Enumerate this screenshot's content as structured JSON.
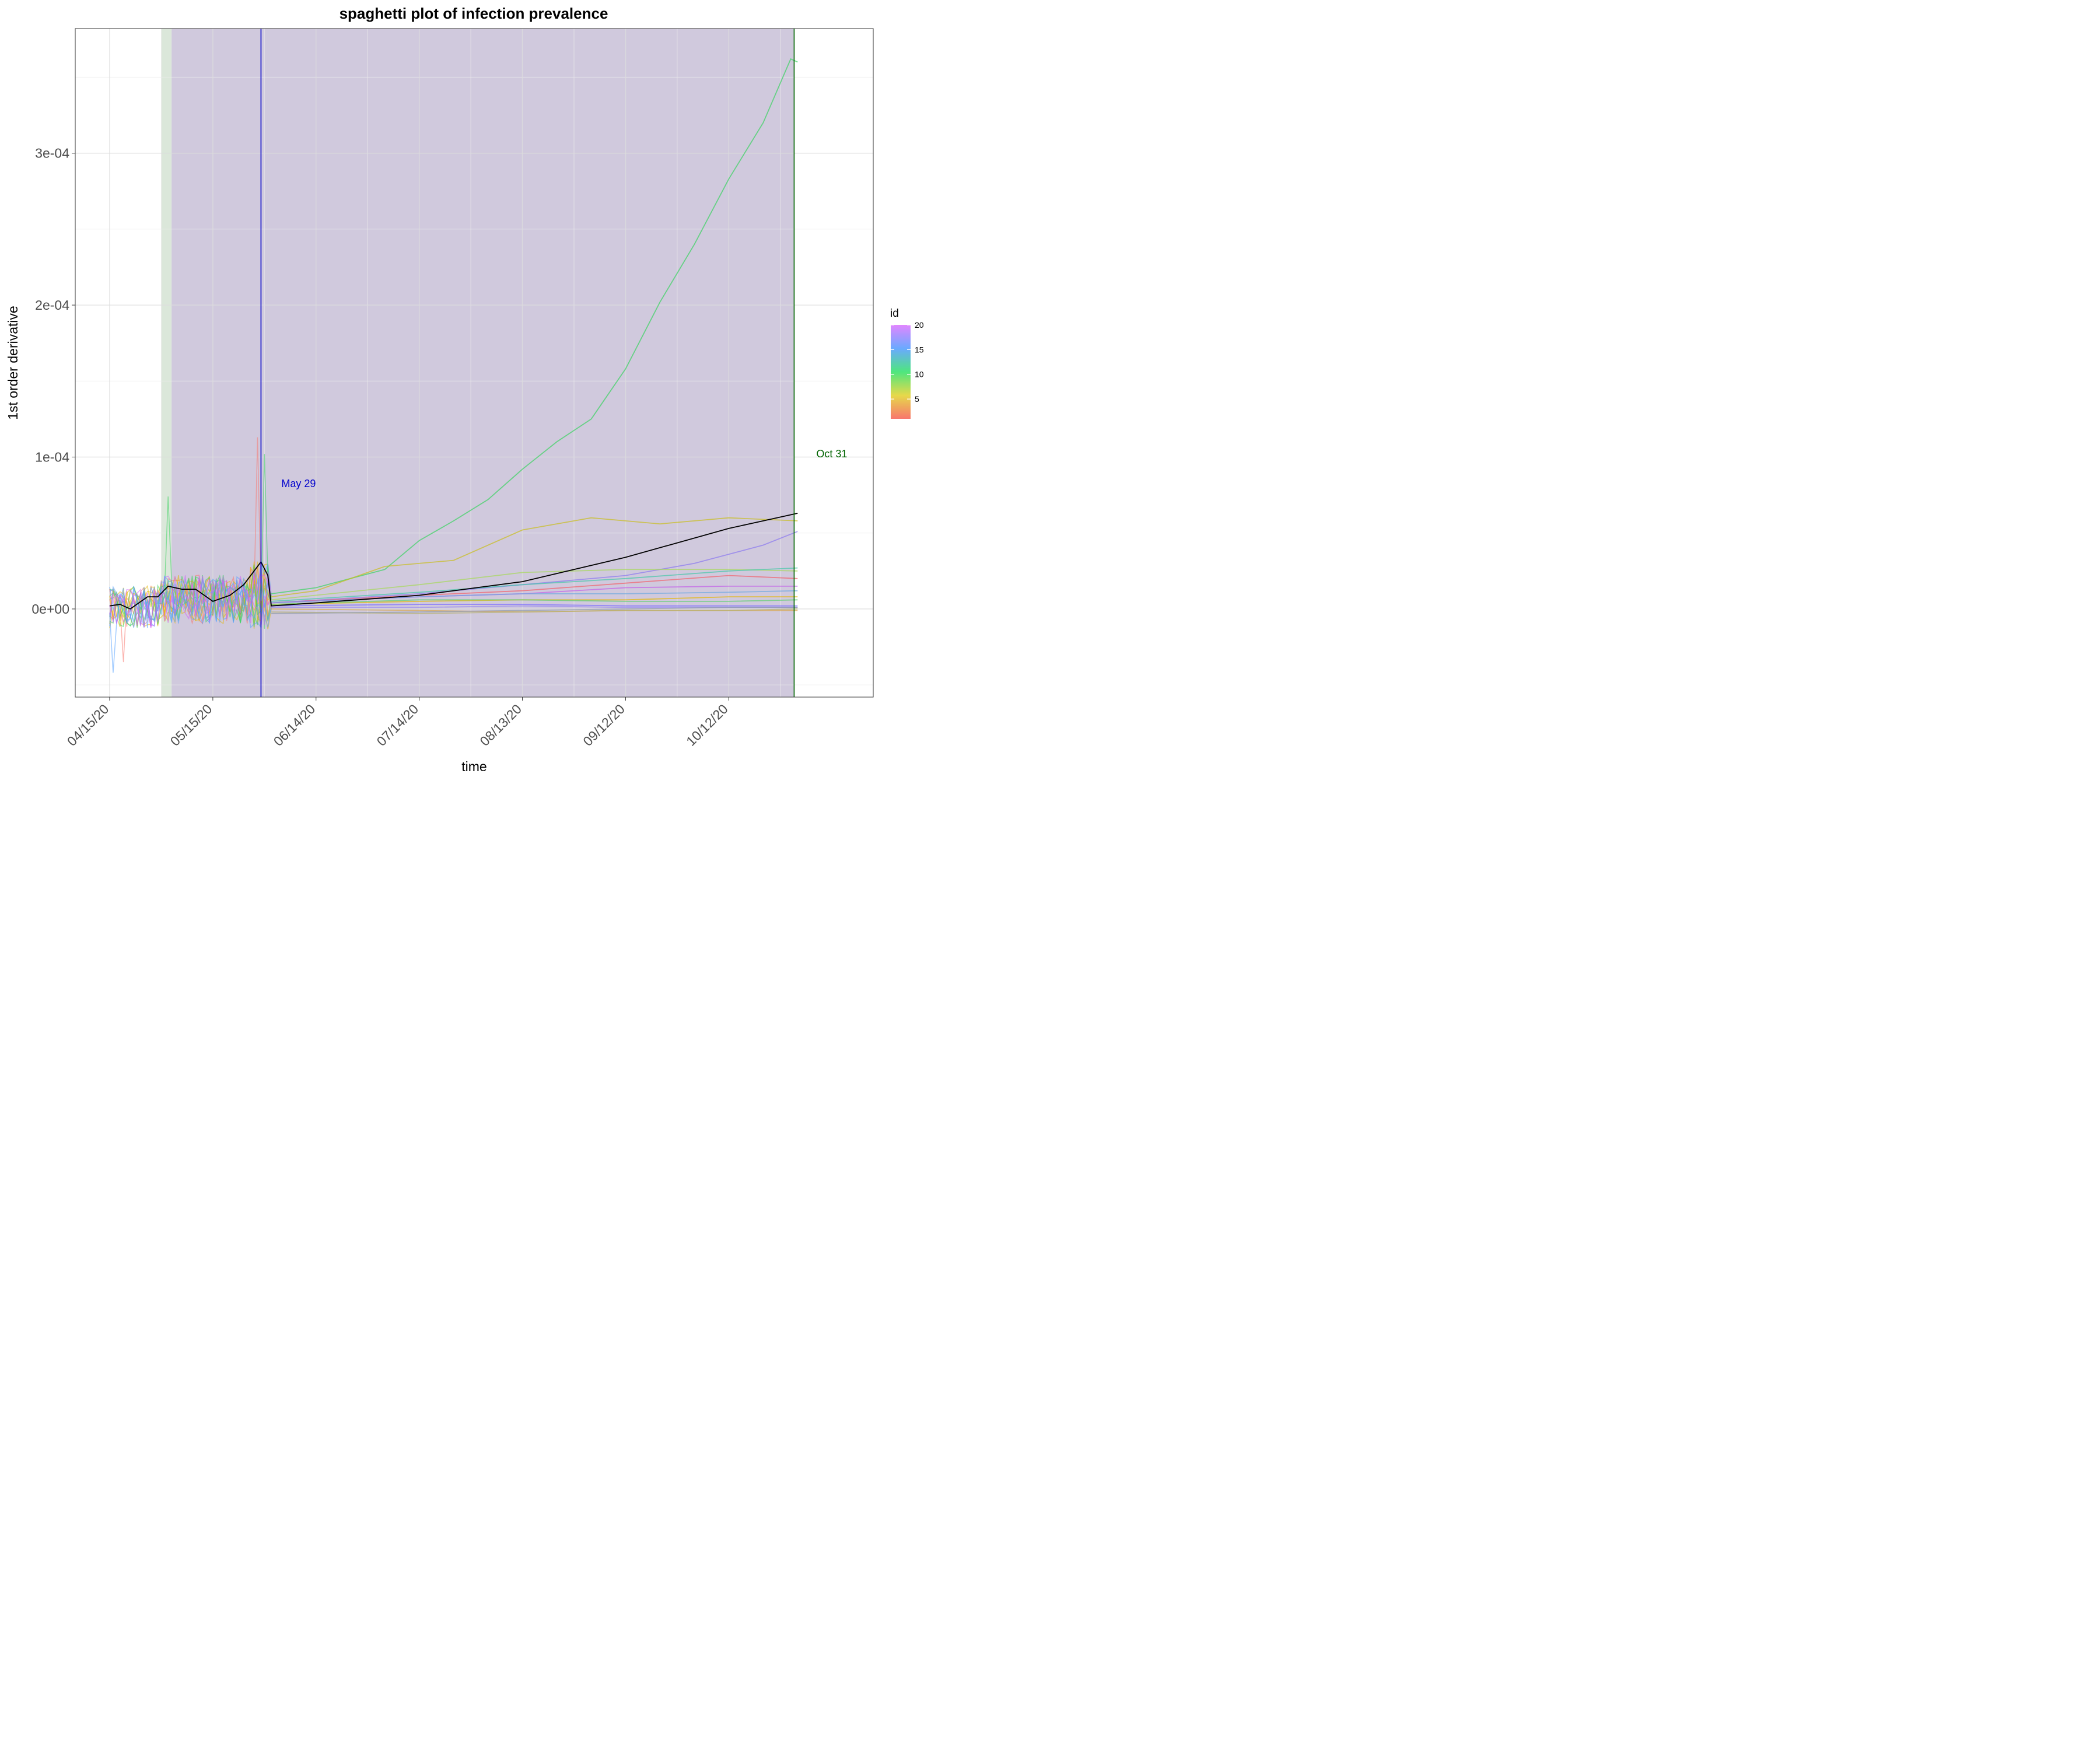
{
  "chart_data": {
    "type": "line",
    "title": "spaghetti plot of infection prevalence",
    "xlabel": "time",
    "ylabel": "1st order derivative",
    "x_ticks": [
      "04/15/20",
      "05/15/20",
      "06/14/20",
      "07/14/20",
      "08/13/20",
      "09/12/20",
      "10/12/20"
    ],
    "x_range": [
      "2020-04-05",
      "2020-11-23"
    ],
    "ylim": [
      -5.8e-05,
      0.000382
    ],
    "y_ticks": [
      {
        "value": 0.0,
        "label": "0e+00"
      },
      {
        "value": 0.0001,
        "label": "1e-04"
      },
      {
        "value": 0.0002,
        "label": "2e-04"
      },
      {
        "value": 0.0003,
        "label": "3e-04"
      }
    ],
    "grid": true,
    "shaded_regions": [
      {
        "start": "2020-04-30",
        "end": "2020-05-03",
        "color": "#dbe7da"
      },
      {
        "start": "2020-05-03",
        "end": "2020-10-31",
        "color": "#d0c9dd"
      }
    ],
    "vertical_lines": [
      {
        "date": "2020-05-29",
        "color": "#0000cc",
        "label": "May 29"
      },
      {
        "date": "2020-10-31",
        "color": "#006400",
        "label": "Oct 31"
      }
    ],
    "legend": {
      "title": "id",
      "type": "colorbar",
      "position": "right",
      "min": 1,
      "max": 20,
      "ticks": [
        5,
        10,
        15,
        20
      ],
      "colors": [
        "#f8766d",
        "#e6b600",
        "#39d35f",
        "#54a0ff",
        "#cf61f8"
      ]
    },
    "mean_line": {
      "color": "#000000",
      "points": [
        [
          "2020-04-15",
          2e-06
        ],
        [
          "2020-04-18",
          3e-06
        ],
        [
          "2020-04-21",
          0.0
        ],
        [
          "2020-04-26",
          8e-06
        ],
        [
          "2020-04-29",
          8e-06
        ],
        [
          "2020-05-02",
          1.5e-05
        ],
        [
          "2020-05-06",
          1.3e-05
        ],
        [
          "2020-05-10",
          1.3e-05
        ],
        [
          "2020-05-15",
          5e-06
        ],
        [
          "2020-05-20",
          9e-06
        ],
        [
          "2020-05-24",
          1.6e-05
        ],
        [
          "2020-05-27",
          2.5e-05
        ],
        [
          "2020-05-29",
          3.1e-05
        ],
        [
          "2020-05-31",
          2.2e-05
        ],
        [
          "2020-06-01",
          2e-06
        ],
        [
          "2020-06-14",
          4e-06
        ],
        [
          "2020-07-14",
          9e-06
        ],
        [
          "2020-08-13",
          1.8e-05
        ],
        [
          "2020-09-12",
          3.4e-05
        ],
        [
          "2020-10-12",
          5.3e-05
        ],
        [
          "2020-11-01",
          6.3e-05
        ]
      ]
    },
    "series": [
      {
        "id": 10,
        "color": "#39d35f",
        "points": [
          [
            "2020-06-01",
            1e-05
          ],
          [
            "2020-06-14",
            1.4e-05
          ],
          [
            "2020-06-24",
            2e-05
          ],
          [
            "2020-07-04",
            2.6e-05
          ],
          [
            "2020-07-14",
            4.5e-05
          ],
          [
            "2020-07-24",
            5.8e-05
          ],
          [
            "2020-08-03",
            7.2e-05
          ],
          [
            "2020-08-13",
            9.2e-05
          ],
          [
            "2020-08-23",
            0.00011
          ],
          [
            "2020-09-02",
            0.000125
          ],
          [
            "2020-09-12",
            0.000158
          ],
          [
            "2020-09-22",
            0.000202
          ],
          [
            "2020-10-02",
            0.00024
          ],
          [
            "2020-10-12",
            0.000283
          ],
          [
            "2020-10-22",
            0.00032
          ],
          [
            "2020-10-30",
            0.000362
          ],
          [
            "2020-11-01",
            0.00036
          ]
        ]
      },
      {
        "id": 5,
        "color": "#c9bd1c",
        "points": [
          [
            "2020-06-01",
            8e-06
          ],
          [
            "2020-06-14",
            1.2e-05
          ],
          [
            "2020-07-04",
            2.8e-05
          ],
          [
            "2020-07-24",
            3.2e-05
          ],
          [
            "2020-08-13",
            5.2e-05
          ],
          [
            "2020-09-02",
            6e-05
          ],
          [
            "2020-09-22",
            5.6e-05
          ],
          [
            "2020-10-12",
            6e-05
          ],
          [
            "2020-11-01",
            5.8e-05
          ]
        ]
      },
      {
        "id": 17,
        "color": "#8a78f0",
        "points": [
          [
            "2020-06-01",
            4e-06
          ],
          [
            "2020-07-14",
            1e-05
          ],
          [
            "2020-08-13",
            1.6e-05
          ],
          [
            "2020-09-12",
            2.2e-05
          ],
          [
            "2020-10-02",
            3e-05
          ],
          [
            "2020-10-22",
            4.2e-05
          ],
          [
            "2020-11-01",
            5.1e-05
          ]
        ]
      },
      {
        "id": 8,
        "color": "#a7d85a",
        "points": [
          [
            "2020-06-01",
            6e-06
          ],
          [
            "2020-07-14",
            1.6e-05
          ],
          [
            "2020-08-13",
            2.4e-05
          ],
          [
            "2020-09-12",
            2.6e-05
          ],
          [
            "2020-10-12",
            2.6e-05
          ],
          [
            "2020-11-01",
            2.5e-05
          ]
        ]
      },
      {
        "id": 12,
        "color": "#45c7a8",
        "points": [
          [
            "2020-06-01",
            5e-06
          ],
          [
            "2020-07-14",
            1.1e-05
          ],
          [
            "2020-08-13",
            1.6e-05
          ],
          [
            "2020-09-12",
            2e-05
          ],
          [
            "2020-10-12",
            2.5e-05
          ],
          [
            "2020-11-01",
            2.7e-05
          ]
        ]
      },
      {
        "id": 1,
        "color": "#f25f6a",
        "points": [
          [
            "2020-06-01",
            4e-06
          ],
          [
            "2020-07-14",
            9e-06
          ],
          [
            "2020-08-13",
            1.2e-05
          ],
          [
            "2020-09-12",
            1.7e-05
          ],
          [
            "2020-10-12",
            2.2e-05
          ],
          [
            "2020-11-01",
            2e-05
          ]
        ]
      },
      {
        "id": 19,
        "color": "#c35ee8",
        "points": [
          [
            "2020-06-01",
            4e-06
          ],
          [
            "2020-07-14",
            8e-06
          ],
          [
            "2020-08-13",
            1e-05
          ],
          [
            "2020-09-12",
            1.4e-05
          ],
          [
            "2020-10-12",
            1.5e-05
          ],
          [
            "2020-11-01",
            1.5e-05
          ]
        ]
      },
      {
        "id": 14,
        "color": "#6fa8e0",
        "points": [
          [
            "2020-06-01",
            4e-06
          ],
          [
            "2020-07-14",
            8e-06
          ],
          [
            "2020-08-13",
            1e-05
          ],
          [
            "2020-09-12",
            1e-05
          ],
          [
            "2020-10-12",
            1.1e-05
          ],
          [
            "2020-11-01",
            1.2e-05
          ]
        ]
      },
      {
        "id": 3,
        "color": "#e6b600",
        "points": [
          [
            "2020-06-01",
            3e-06
          ],
          [
            "2020-07-14",
            5e-06
          ],
          [
            "2020-08-13",
            6e-06
          ],
          [
            "2020-09-12",
            6e-06
          ],
          [
            "2020-10-12",
            8e-06
          ],
          [
            "2020-11-01",
            8e-06
          ]
        ]
      },
      {
        "id": 9,
        "color": "#60d070",
        "points": [
          [
            "2020-06-01",
            3e-06
          ],
          [
            "2020-07-14",
            6e-06
          ],
          [
            "2020-08-13",
            6e-06
          ],
          [
            "2020-09-12",
            5e-06
          ],
          [
            "2020-10-12",
            5e-06
          ],
          [
            "2020-11-01",
            6e-06
          ]
        ]
      },
      {
        "id": 16,
        "color": "#7b6cff",
        "points": [
          [
            "2020-06-01",
            2e-06
          ],
          [
            "2020-07-14",
            3e-06
          ],
          [
            "2020-08-13",
            3e-06
          ],
          [
            "2020-09-12",
            2e-06
          ],
          [
            "2020-10-12",
            2e-06
          ],
          [
            "2020-11-01",
            2e-06
          ]
        ]
      },
      {
        "id": 20,
        "color": "#9a8cf0",
        "points": [
          [
            "2020-06-01",
            1e-06
          ],
          [
            "2020-07-14",
            1e-06
          ],
          [
            "2020-08-13",
            2e-06
          ],
          [
            "2020-09-12",
            1e-06
          ],
          [
            "2020-10-12",
            1e-06
          ],
          [
            "2020-11-01",
            1e-06
          ]
        ]
      },
      {
        "id": 2,
        "color": "#d8a64a",
        "points": [
          [
            "2020-06-01",
            0.0
          ],
          [
            "2020-07-14",
            -1e-06
          ],
          [
            "2020-08-13",
            -2e-06
          ],
          [
            "2020-09-12",
            -1e-06
          ],
          [
            "2020-10-12",
            -1e-06
          ],
          [
            "2020-11-01",
            -1e-06
          ]
        ]
      },
      {
        "id": 6,
        "color": "#b5b070",
        "points": [
          [
            "2020-06-01",
            -2e-06
          ],
          [
            "2020-07-14",
            -3e-06
          ],
          [
            "2020-08-13",
            -2e-06
          ],
          [
            "2020-09-12",
            -1e-06
          ],
          [
            "2020-10-12",
            -1e-06
          ],
          [
            "2020-11-01",
            0.0
          ]
        ]
      },
      {
        "id": 13,
        "color": "#8f9aa8",
        "points": [
          [
            "2020-06-01",
            -3e-06
          ],
          [
            "2020-07-14",
            -2e-06
          ],
          [
            "2020-08-13",
            -1e-06
          ],
          [
            "2020-09-12",
            0.0
          ],
          [
            "2020-10-12",
            1e-06
          ],
          [
            "2020-11-01",
            1e-06
          ]
        ]
      }
    ]
  }
}
